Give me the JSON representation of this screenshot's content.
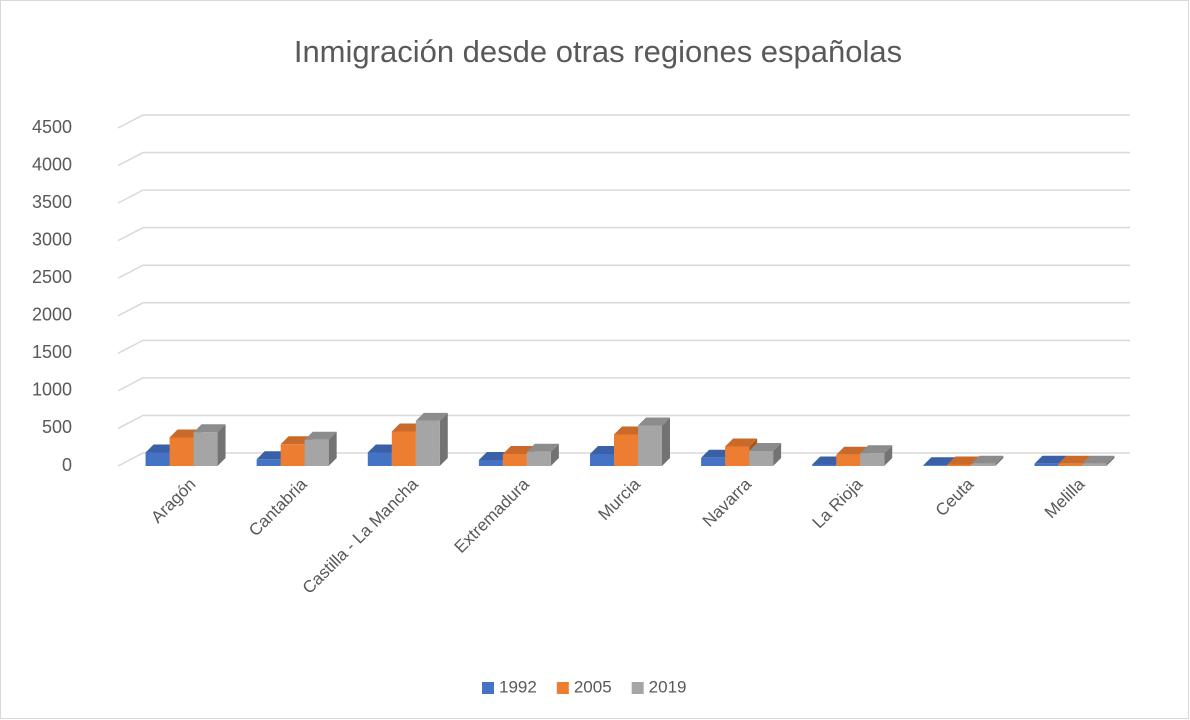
{
  "chart_data": {
    "type": "bar3d",
    "title": "Inmigración desde otras regiones españolas",
    "categories": [
      "Aragón",
      "Cantabria",
      "Castilla - La Mancha",
      "Extremadura",
      "Murcia",
      "Navarra",
      "La Rioja",
      "Ceuta",
      "Melilla"
    ],
    "series": [
      {
        "name": "1992",
        "color": "#4472c4",
        "values": [
          180,
          90,
          180,
          80,
          160,
          110,
          20,
          10,
          30
        ]
      },
      {
        "name": "2005",
        "color": "#ed7d31",
        "values": [
          380,
          290,
          460,
          160,
          420,
          260,
          150,
          20,
          30
        ]
      },
      {
        "name": "2019",
        "color": "#a5a5a5",
        "values": [
          450,
          350,
          600,
          190,
          540,
          200,
          170,
          30,
          30
        ]
      }
    ],
    "ylim": [
      0,
      4500
    ],
    "yticks": [
      0,
      500,
      1000,
      1500,
      2000,
      2500,
      3000,
      3500,
      4000,
      4500
    ],
    "grid": true,
    "legend": "bottom"
  }
}
